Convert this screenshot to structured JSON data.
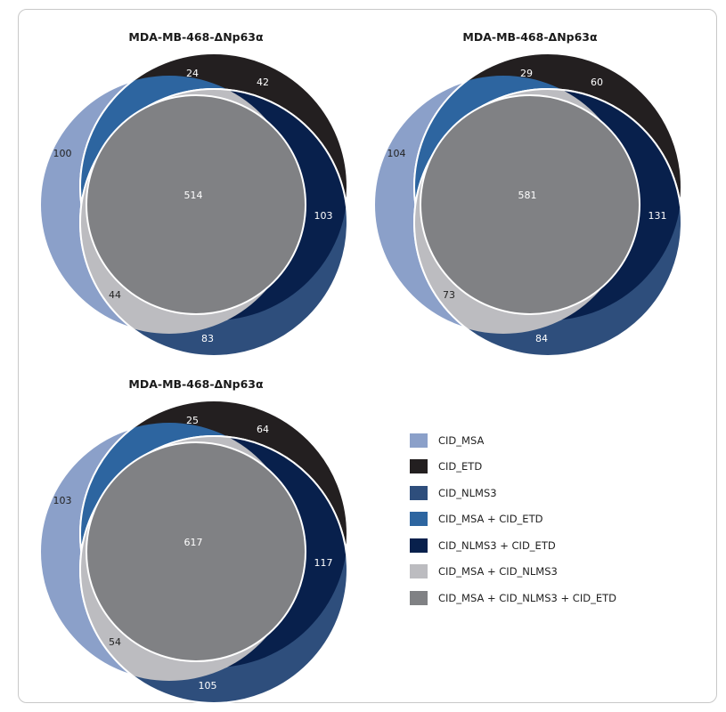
{
  "colors": {
    "msa": "#8ba0c9",
    "etd": "#231f20",
    "nlms3": "#2e4e7c",
    "msa_etd": "#2d65a0",
    "nlms3_etd": "#08204c",
    "msa_nlms3": "#bcbcc0",
    "all": "#808184"
  },
  "diagrams": [
    {
      "title": "MDA-MB-468-ΔNp63α",
      "values": {
        "msa": "100",
        "msa_etd": "24",
        "etd": "42",
        "all": "514",
        "nlms3_etd": "103",
        "msa_nlms3": "44",
        "nlms3": "83"
      }
    },
    {
      "title": "MDA-MB-468-ΔNp63α",
      "values": {
        "msa": "104",
        "msa_etd": "29",
        "etd": "60",
        "all": "581",
        "nlms3_etd": "131",
        "msa_nlms3": "73",
        "nlms3": "84"
      }
    },
    {
      "title": "MDA-MB-468-ΔNp63α",
      "values": {
        "msa": "103",
        "msa_etd": "25",
        "etd": "64",
        "all": "617",
        "nlms3_etd": "117",
        "msa_nlms3": "54",
        "nlms3": "105"
      }
    }
  ],
  "legend": [
    {
      "label": "CID_MSA",
      "color": "#8ba0c9"
    },
    {
      "label": "CID_ETD",
      "color": "#231f20"
    },
    {
      "label": "CID_NLMS3",
      "color": "#2e4e7c"
    },
    {
      "label": "CID_MSA + CID_ETD",
      "color": "#2d65a0"
    },
    {
      "label": "CID_NLMS3 + CID_ETD",
      "color": "#08204c"
    },
    {
      "label": "CID_MSA + CID_NLMS3",
      "color": "#bcbcc0"
    },
    {
      "label": "CID_MSA + CID_NLMS3 + CID_ETD",
      "color": "#808184"
    }
  ]
}
